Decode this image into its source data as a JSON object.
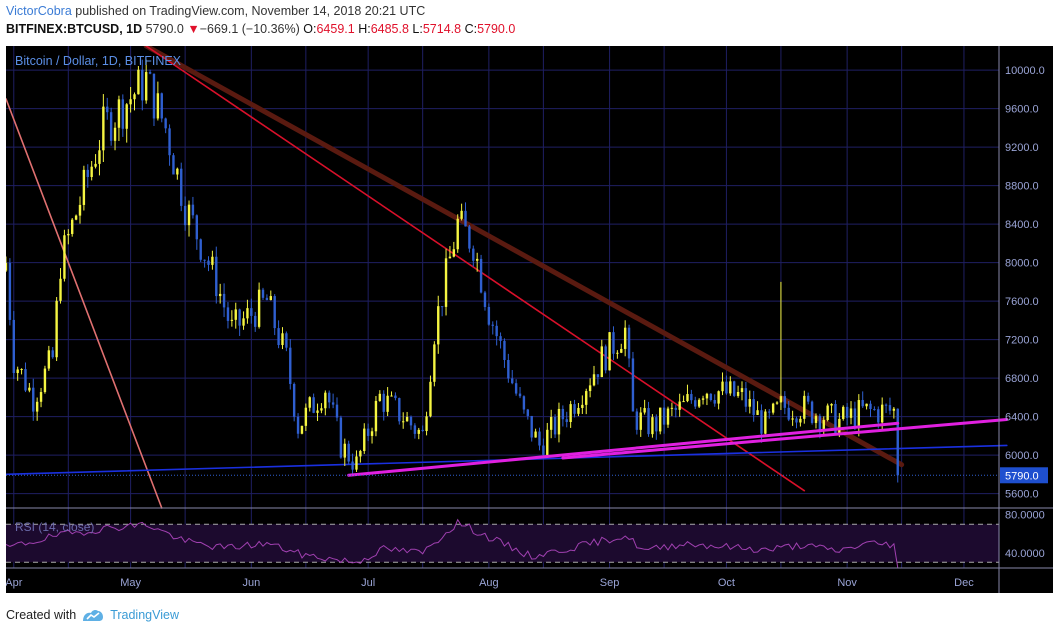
{
  "header": {
    "author": "VictorCobra",
    "published_text": "published on TradingView.com, November 14, 2018 20:21 UTC",
    "symbol": "BITFINEX:BTCUSD, 1D",
    "last": "5790.0",
    "arrow": "▼",
    "change": "−669.1 (−10.36%)",
    "o_label": "O:",
    "o_val": "6459.1",
    "h_label": "H:",
    "h_val": "6485.8",
    "l_label": "L:",
    "l_val": "5714.8",
    "c_label": "C:",
    "c_val": "5790.0"
  },
  "footer": {
    "created_with": "Created with",
    "brand": "TradingView"
  },
  "colors": {
    "background": "#000000",
    "grid": "#1f1f63",
    "up": "#f5f542",
    "down": "#2f5fd0",
    "rsi": "#a040b0",
    "magenta": "#e020e0",
    "red_line": "#d8102a",
    "brown_line": "#5a1a10",
    "salmon_line": "#e07070",
    "blue_line": "#1a30e0"
  },
  "chart_data": [
    {
      "type": "candlestick",
      "title": "Bitcoin / Dollar, 1D, BITFINEX",
      "ylim": [
        5450,
        10250
      ],
      "y_ticks": [
        "10000.0",
        "9600.0",
        "9200.0",
        "8800.0",
        "8400.0",
        "8000.0",
        "7600.0",
        "7200.0",
        "6800.0",
        "6400.0",
        "6000.0",
        "5600.0"
      ],
      "x_ticks": [
        "Apr",
        "May",
        "Jun",
        "Jul",
        "Aug",
        "Sep",
        "Oct",
        "Nov",
        "Dec"
      ],
      "x_range": [
        "2018-03-30",
        "2018-12-10"
      ],
      "last_price_label": "5790.0",
      "anchor_points": [
        [
          "2018-03-30",
          8000
        ],
        [
          "2018-04-01",
          7000
        ],
        [
          "2018-04-06",
          6600
        ],
        [
          "2018-04-11",
          7000
        ],
        [
          "2018-04-13",
          8000
        ],
        [
          "2018-04-24",
          9400
        ],
        [
          "2018-05-05",
          9900
        ],
        [
          "2018-05-10",
          9400
        ],
        [
          "2018-05-15",
          8600
        ],
        [
          "2018-05-23",
          7800
        ],
        [
          "2018-05-27",
          7300
        ],
        [
          "2018-06-05",
          7600
        ],
        [
          "2018-06-10",
          7000
        ],
        [
          "2018-06-13",
          6300
        ],
        [
          "2018-06-20",
          6700
        ],
        [
          "2018-06-24",
          6100
        ],
        [
          "2018-06-28",
          5900
        ],
        [
          "2018-07-04",
          6600
        ],
        [
          "2018-07-10",
          6400
        ],
        [
          "2018-07-15",
          6200
        ],
        [
          "2018-07-18",
          7300
        ],
        [
          "2018-07-24",
          8400
        ],
        [
          "2018-07-28",
          8200
        ],
        [
          "2018-08-01",
          7500
        ],
        [
          "2018-08-05",
          7000
        ],
        [
          "2018-08-10",
          6400
        ],
        [
          "2018-08-14",
          6100
        ],
        [
          "2018-08-22",
          6500
        ],
        [
          "2018-08-30",
          7000
        ],
        [
          "2018-09-05",
          7300
        ],
        [
          "2018-09-07",
          6400
        ],
        [
          "2018-09-12",
          6300
        ],
        [
          "2018-09-20",
          6500
        ],
        [
          "2018-09-25",
          6700
        ],
        [
          "2018-10-05",
          6600
        ],
        [
          "2018-10-11",
          6300
        ],
        [
          "2018-10-15",
          6500
        ],
        [
          "2018-10-20",
          6500
        ],
        [
          "2018-10-30",
          6350
        ],
        [
          "2018-11-05",
          6450
        ],
        [
          "2018-11-13",
          6460
        ],
        [
          "2018-11-14",
          5790
        ]
      ],
      "wick_spike": {
        "date": "2018-10-15",
        "high": 7800
      }
    },
    {
      "type": "line",
      "title": "RSI (14, close)",
      "ylim": [
        24,
        86
      ],
      "y_ticks": [
        "80.0000",
        "40.0000"
      ],
      "bands": [
        70,
        30
      ],
      "anchor_points": [
        [
          "2018-03-30",
          45
        ],
        [
          "2018-04-12",
          58
        ],
        [
          "2018-04-25",
          66
        ],
        [
          "2018-05-05",
          70
        ],
        [
          "2018-05-15",
          52
        ],
        [
          "2018-05-25",
          45
        ],
        [
          "2018-06-05",
          50
        ],
        [
          "2018-06-14",
          38
        ],
        [
          "2018-06-28",
          30
        ],
        [
          "2018-07-05",
          44
        ],
        [
          "2018-07-15",
          40
        ],
        [
          "2018-07-24",
          72
        ],
        [
          "2018-08-01",
          56
        ],
        [
          "2018-08-12",
          36
        ],
        [
          "2018-08-22",
          45
        ],
        [
          "2018-09-05",
          58
        ],
        [
          "2018-09-10",
          42
        ],
        [
          "2018-09-20",
          50
        ],
        [
          "2018-10-11",
          43
        ],
        [
          "2018-10-20",
          48
        ],
        [
          "2018-10-30",
          42
        ],
        [
          "2018-11-06",
          50
        ],
        [
          "2018-11-13",
          49
        ],
        [
          "2018-11-14",
          24
        ]
      ]
    }
  ],
  "trendlines": [
    {
      "name": "salmon-trendline",
      "color": "#e07070",
      "from": [
        "2018-03-30",
        9700
      ],
      "to": [
        "2018-05-09",
        5450
      ]
    },
    {
      "name": "brown-trendline",
      "color": "#5a1a10",
      "from": [
        "2018-05-05",
        10250
      ],
      "to": [
        "2018-11-15",
        5900
      ]
    },
    {
      "name": "red-trendline",
      "color": "#d8102a",
      "from": [
        "2018-05-05",
        10250
      ],
      "to": [
        "2018-10-21",
        5630
      ]
    },
    {
      "name": "blue-support-line",
      "color": "#1a30e0",
      "from": [
        "2018-03-30",
        5800
      ],
      "to": [
        "2018-12-12",
        6100
      ]
    },
    {
      "name": "magenta-lower-line",
      "color": "#e020e0",
      "from": [
        "2018-06-26",
        5790
      ],
      "to": [
        "2018-11-14",
        6330
      ]
    },
    {
      "name": "magenta-upper-line",
      "color": "#e020e0",
      "from": [
        "2018-08-20",
        5970
      ],
      "to": [
        "2018-12-12",
        6370
      ]
    }
  ]
}
